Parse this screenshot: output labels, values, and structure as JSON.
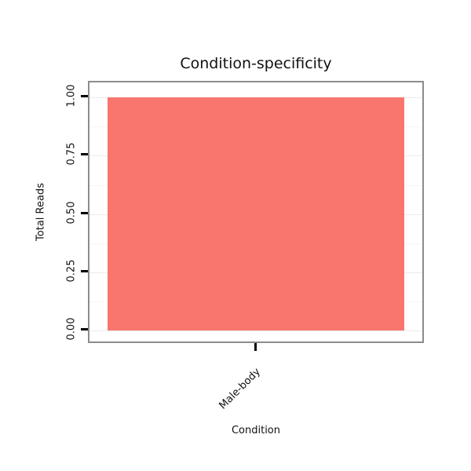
{
  "chart_data": {
    "type": "bar",
    "title": "Condition-specificity",
    "xlabel": "Condition",
    "ylabel": "Total Reads",
    "categories": [
      "Male-body"
    ],
    "values": [
      1.0
    ],
    "ylim": [
      0,
      1.0
    ],
    "yticks": [
      0.0,
      0.25,
      0.5,
      0.75,
      1.0
    ],
    "ytick_labels": [
      "0.00",
      "0.25",
      "0.50",
      "0.75",
      "1.00"
    ],
    "bar_color": "#F8766D",
    "grid": true,
    "legend": "none"
  }
}
